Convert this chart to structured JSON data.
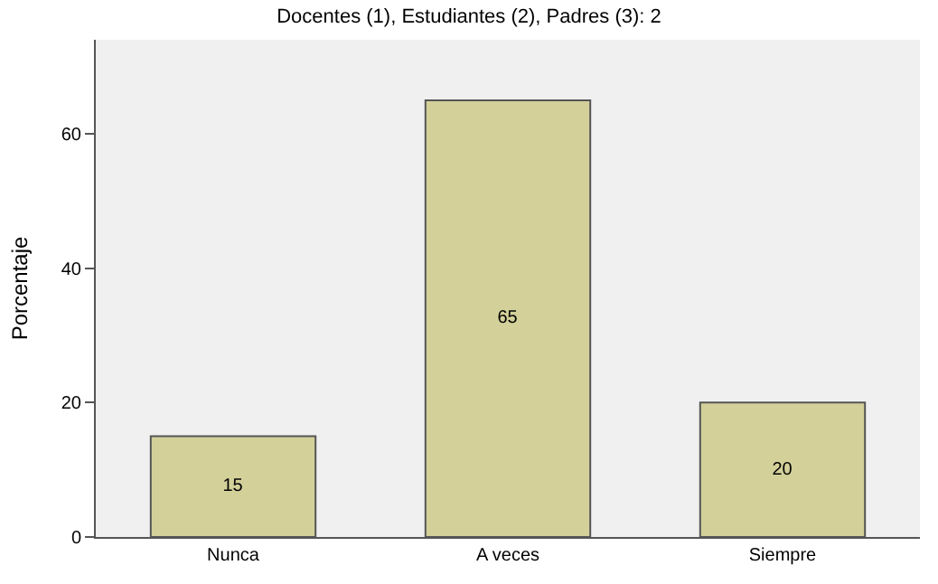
{
  "chart_data": {
    "type": "bar",
    "title": "Docentes (1), Estudiantes (2), Padres (3): 2",
    "ylabel": "Porcentaje",
    "categories": [
      "Nunca",
      "A veces",
      "Siempre"
    ],
    "values": [
      15,
      65,
      20
    ],
    "color": "#d3d09a",
    "ylim": [
      0,
      74
    ],
    "yticks": [
      0,
      20,
      40,
      60
    ],
    "data_labels": true,
    "grid": false,
    "legend": false
  }
}
